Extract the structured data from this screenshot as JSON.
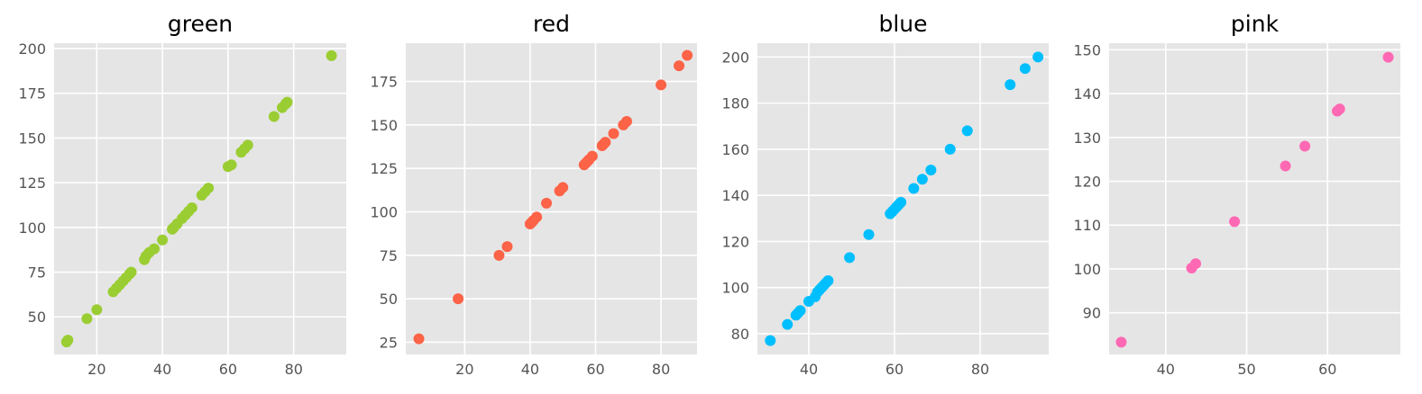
{
  "colors": {
    "background": "#e5e5e5",
    "grid": "#ffffff",
    "tick_text": "#555555"
  },
  "chart_data": [
    {
      "type": "scatter",
      "title": "green",
      "color": "#9acd32",
      "grid": true,
      "xlim": [
        7,
        96
      ],
      "ylim": [
        29,
        203
      ],
      "xticks": [
        20,
        40,
        60,
        80
      ],
      "yticks": [
        50,
        75,
        100,
        125,
        150,
        175,
        200
      ],
      "x": [
        10.8,
        11.2,
        17,
        20,
        25,
        26,
        27,
        28,
        29,
        30,
        30.5,
        34.5,
        35,
        36,
        37.5,
        40,
        43,
        43.5,
        44.5,
        46,
        47,
        48,
        49,
        52,
        53,
        54,
        60,
        61,
        64,
        65,
        66,
        74,
        76.5,
        77.5,
        78,
        91.5
      ],
      "y": [
        36,
        37,
        49,
        54,
        64,
        66,
        68,
        70,
        72,
        74,
        75,
        82,
        84,
        86,
        88,
        93,
        99,
        100,
        102,
        105,
        107,
        109,
        111,
        118,
        120,
        122,
        134,
        135,
        142,
        144,
        146,
        162,
        167,
        169,
        170,
        196
      ]
    },
    {
      "type": "scatter",
      "title": "red",
      "color": "#fd6347",
      "grid": true,
      "xlim": [
        2,
        91
      ],
      "ylim": [
        18,
        197
      ],
      "xticks": [
        20,
        40,
        60,
        80
      ],
      "yticks": [
        25,
        50,
        75,
        100,
        125,
        150,
        175
      ],
      "x": [
        6,
        18,
        30.5,
        33,
        40,
        40.5,
        41,
        42,
        45,
        49,
        50,
        56.5,
        57,
        57.5,
        58,
        59,
        62,
        62.5,
        63,
        65.5,
        68.5,
        69.5,
        80,
        85.5,
        88
      ],
      "y": [
        27,
        50,
        75,
        80,
        93,
        94,
        95,
        97,
        105,
        112,
        114,
        127,
        128,
        129,
        130,
        132,
        138,
        139,
        140,
        145,
        150,
        152,
        173,
        184,
        190
      ]
    },
    {
      "type": "scatter",
      "title": "blue",
      "color": "#00bfff",
      "grid": true,
      "xlim": [
        28,
        96
      ],
      "ylim": [
        71,
        206
      ],
      "xticks": [
        40,
        60,
        80
      ],
      "yticks": [
        80,
        100,
        120,
        140,
        160,
        180,
        200
      ],
      "x": [
        31,
        35,
        37,
        37.5,
        38,
        40,
        41.5,
        42,
        42.5,
        43,
        43.5,
        44,
        44.5,
        49.5,
        54,
        59,
        59.5,
        60,
        60.5,
        61,
        61.5,
        64.5,
        66.5,
        68.5,
        73,
        77,
        87,
        90.5,
        93.5
      ],
      "y": [
        77,
        84,
        88,
        89,
        90,
        94,
        96,
        98,
        99,
        100,
        101,
        102,
        103,
        113,
        123,
        132,
        133,
        134,
        135,
        136,
        137,
        143,
        147,
        151,
        160,
        168,
        188,
        195,
        200
      ]
    },
    {
      "type": "scatter",
      "title": "pink",
      "color": "#ff69b4",
      "grid": true,
      "xlim": [
        33,
        69
      ],
      "ylim": [
        80.5,
        151.5
      ],
      "xticks": [
        40,
        50,
        60
      ],
      "yticks": [
        90,
        100,
        110,
        120,
        130,
        140,
        150
      ],
      "x": [
        34.5,
        43.2,
        43.7,
        48.5,
        54.8,
        57.2,
        61.2,
        61.5,
        67.5
      ],
      "y": [
        83.3,
        100.2,
        101.2,
        110.8,
        123.5,
        128,
        136,
        136.5,
        148.3
      ]
    }
  ]
}
